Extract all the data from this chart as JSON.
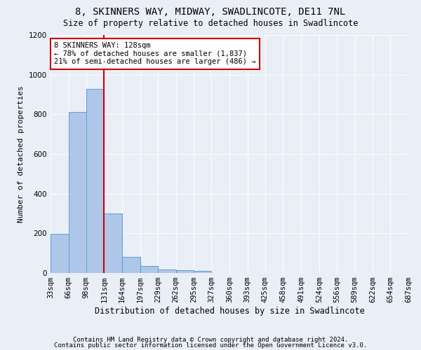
{
  "title1": "8, SKINNERS WAY, MIDWAY, SWADLINCOTE, DE11 7NL",
  "title2": "Size of property relative to detached houses in Swadlincote",
  "xlabel": "Distribution of detached houses by size in Swadlincote",
  "ylabel": "Number of detached properties",
  "footnote1": "Contains HM Land Registry data © Crown copyright and database right 2024.",
  "footnote2": "Contains public sector information licensed under the Open Government Licence v3.0.",
  "annotation_title": "8 SKINNERS WAY: 128sqm",
  "annotation_line1": "← 78% of detached houses are smaller (1,837)",
  "annotation_line2": "21% of semi-detached houses are larger (486) →",
  "bin_edges": [
    33,
    66,
    98,
    131,
    164,
    197,
    229,
    262,
    295,
    327,
    360,
    393,
    425,
    458,
    491,
    524,
    556,
    589,
    622,
    654,
    687
  ],
  "bar_heights": [
    196,
    812,
    928,
    300,
    82,
    35,
    16,
    13,
    10,
    0,
    0,
    0,
    0,
    0,
    0,
    0,
    0,
    0,
    0,
    0
  ],
  "bar_color": "#aec6e8",
  "bar_edge_color": "#5a9fd4",
  "vline_color": "#cc0000",
  "vline_x": 131,
  "background_color": "#eaeff7",
  "plot_bg_color": "#eaeff7",
  "ylim": [
    0,
    1200
  ],
  "yticks": [
    0,
    200,
    400,
    600,
    800,
    1000,
    1200
  ],
  "grid_color": "#ffffff",
  "annotation_box_color": "#ffffff",
  "annotation_box_edge": "#cc0000",
  "title1_fontsize": 10,
  "title2_fontsize": 8.5,
  "ylabel_fontsize": 8,
  "xlabel_fontsize": 8.5,
  "tick_fontsize": 7.5,
  "footnote_fontsize": 6.5
}
